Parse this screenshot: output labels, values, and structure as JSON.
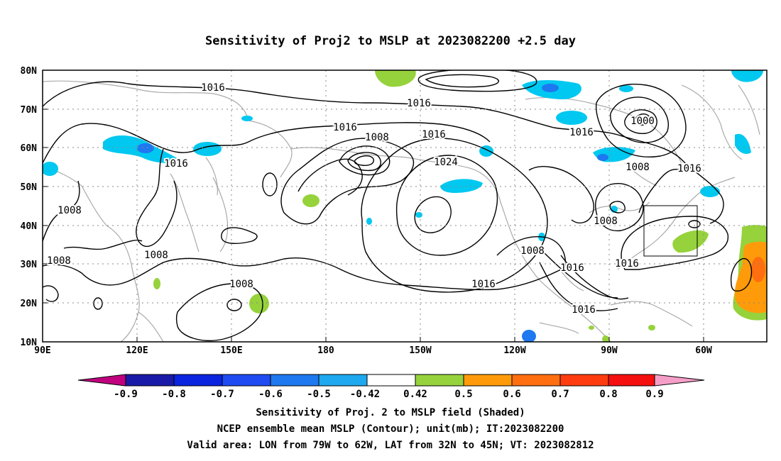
{
  "title": "Sensitivity of Proj2 to MSLP at 2023082200 +2.5 day",
  "map": {
    "lat_labels": [
      "80N",
      "70N",
      "60N",
      "50N",
      "40N",
      "30N",
      "20N",
      "10N"
    ],
    "lon_labels": [
      "90E",
      "120E",
      "150E",
      "180",
      "150W",
      "120W",
      "90W",
      "60W"
    ],
    "contour_labels": [
      "1016",
      "1016",
      "1016",
      "1008",
      "1016",
      "1024",
      "1016",
      "1000",
      "1008",
      "1016",
      "1016",
      "1008",
      "1008",
      "1008",
      "1008",
      "1008",
      "1016",
      "1016",
      "1016",
      "1008",
      "1016"
    ],
    "valid_area_box": {
      "lon": [
        "79W",
        "62W"
      ],
      "lat": [
        "32N",
        "45N"
      ]
    }
  },
  "colorbar": {
    "labels": [
      "-0.9",
      "-0.8",
      "-0.7",
      "-0.6",
      "-0.5",
      "-0.42",
      "0.42",
      "0.5",
      "0.6",
      "0.7",
      "0.8",
      "0.9"
    ],
    "colors": [
      "#c0007f",
      "#1a1aa8",
      "#0a24e0",
      "#1e4cf2",
      "#1e78f0",
      "#1ea8f0",
      "#00c8f0",
      "#ffffff",
      "#96d23c",
      "#ff9b0a",
      "#ff6e0f",
      "#ff3c0f",
      "#f50f0f",
      "#f59ec8"
    ]
  },
  "captions": [
    "Sensitivity of Proj. 2 to MSLP field (Shaded)",
    "NCEP ensemble mean MSLP (Contour); unit(mb); IT:2023082200",
    "Valid area: LON from 79W to 62W, LAT from 32N to 45N; VT: 2023082812"
  ]
}
